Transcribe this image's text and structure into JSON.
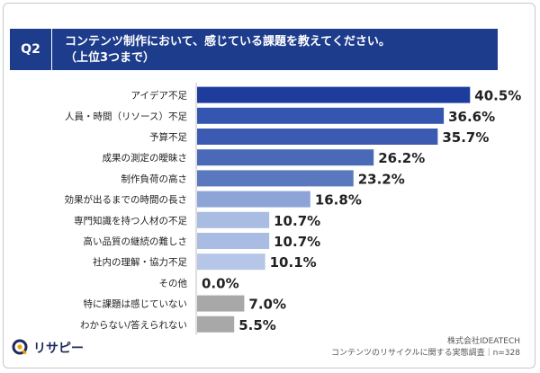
{
  "question": {
    "number": "Q2",
    "line1": "コンテンツ制作において、感じている課題を教えてください。",
    "line2": "（上位3つまで）"
  },
  "chart_data": {
    "type": "bar",
    "orientation": "horizontal",
    "categories": [
      "アイデア不足",
      "人員・時間（リソース）不足",
      "予算不足",
      "成果の測定の曖昧さ",
      "制作負荷の高さ",
      "効果が出るまでの時間の長さ",
      "専門知識を持つ人材の不足",
      "高い品質の継続の難しさ",
      "社内の理解・協力不足",
      "その他",
      "特に課題は感じていない",
      "わからない/答えられない"
    ],
    "values": [
      40.5,
      36.6,
      35.7,
      26.2,
      23.2,
      16.8,
      10.7,
      10.7,
      10.1,
      0.0,
      7.0,
      5.5
    ],
    "value_labels": [
      "40.5%",
      "36.6%",
      "35.7%",
      "26.2%",
      "23.2%",
      "16.8%",
      "10.7%",
      "10.7%",
      "10.1%",
      "0.0%",
      "7.0%",
      "5.5%"
    ],
    "bar_colors": [
      "#1e3c9c",
      "#3556b0",
      "#3b5bb2",
      "#4a6ab8",
      "#5a78be",
      "#8ca4d6",
      "#a9bce2",
      "#a9bce2",
      "#b6c6e8",
      "#b6c6e8",
      "#a8a8a8",
      "#a8a8a8"
    ],
    "xlim": [
      0,
      45
    ]
  },
  "footer": {
    "company": "株式会社IDEATECH",
    "survey": "コンテンツのリサイクルに関する実態調査｜n=328"
  },
  "logo": {
    "text": "リサピー",
    "icon": "q-circle-icon",
    "colors": [
      "#1e2a5c",
      "#f2a100"
    ]
  }
}
